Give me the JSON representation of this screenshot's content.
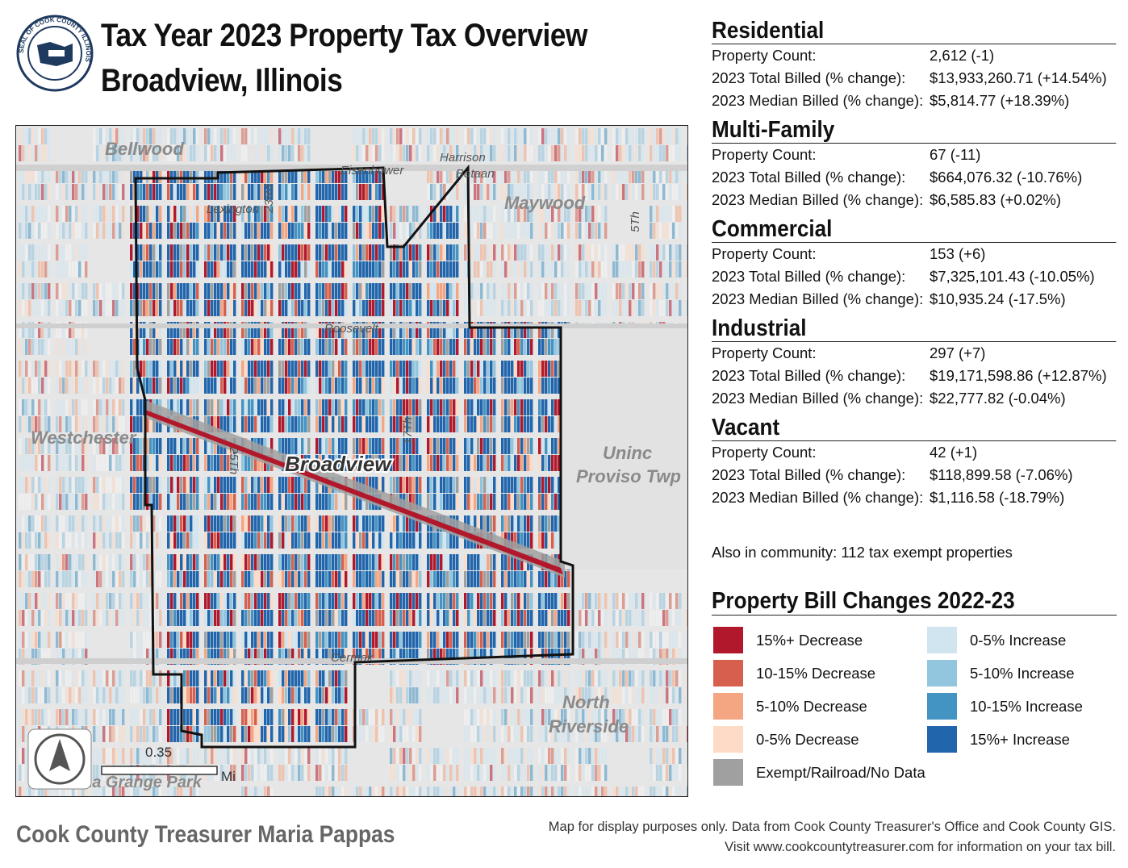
{
  "header": {
    "seal_text": "SEAL OF COOK COUNTY ILLINOIS",
    "title_line1": "Tax Year 2023 Property Tax Overview",
    "title_line2": "Broadview, Illinois"
  },
  "map": {
    "places": [
      "Bellwood",
      "Maywood",
      "Westchester",
      "Broadview",
      "Unincorporated",
      "North Riverside",
      "La Grange Park"
    ],
    "place_labels": {
      "bellwood": "Bellwood",
      "maywood": "Maywood",
      "westchester": "Westchester",
      "broadview": "Broadview",
      "uninc_1": "Uninc",
      "uninc_2": "Proviso Twp",
      "north_riverside_1": "North",
      "north_riverside_2": "Riverside",
      "la_grange_park": "La Grange Park"
    },
    "roads": {
      "eisenhower": "Eisenhower",
      "harrison": "Harrison",
      "bataan": "Bataan",
      "lexington": "Lexington",
      "rd23": "23Rd",
      "th17": "17Th",
      "th25": "25Th",
      "th5": "5Th",
      "roosevelt": "Roosevelt",
      "cermak": "Cermak"
    },
    "scale_value": "0.35",
    "scale_unit": "Mi"
  },
  "sections": [
    {
      "name": "Residential",
      "count_label": "Property Count:",
      "count": "2,612 (-1)",
      "total_label": "2023 Total Billed (% change):",
      "total": "$13,933,260.71 (+14.54%)",
      "median_label": "2023 Median Billed (% change):",
      "median": "$5,814.77 (+18.39%)"
    },
    {
      "name": "Multi-Family",
      "count_label": "Property Count:",
      "count": "67 (-11)",
      "total_label": "2023 Total Billed (% change):",
      "total": "$664,076.32 (-10.76%)",
      "median_label": "2023 Median Billed (% change):",
      "median": "$6,585.83 (+0.02%)"
    },
    {
      "name": "Commercial",
      "count_label": "Property Count:",
      "count": "153 (+6)",
      "total_label": "2023 Total Billed (% change):",
      "total": "$7,325,101.43 (-10.05%)",
      "median_label": "2023 Median Billed (% change):",
      "median": "$10,935.24 (-17.5%)"
    },
    {
      "name": "Industrial",
      "count_label": "Property Count:",
      "count": "297 (+7)",
      "total_label": "2023 Total Billed (% change):",
      "total": "$19,171,598.86 (+12.87%)",
      "median_label": "2023 Median Billed (% change):",
      "median": "$22,777.82 (-0.04%)"
    },
    {
      "name": "Vacant",
      "count_label": "Property Count:",
      "count": "42 (+1)",
      "total_label": "2023 Total Billed (% change):",
      "total": "$118,899.58 (-7.06%)",
      "median_label": "2023 Median Billed (% change):",
      "median": "$1,116.58 (-18.79%)"
    }
  ],
  "exempt_note": "Also in community: 112 tax exempt properties",
  "legend": {
    "title": "Property Bill Changes 2022-23",
    "items": [
      {
        "label": "15%+ Decrease",
        "color": "#b2182b"
      },
      {
        "label": "10-15% Decrease",
        "color": "#d6604d"
      },
      {
        "label": "5-10% Decrease",
        "color": "#f4a582"
      },
      {
        "label": "0-5% Decrease",
        "color": "#fddbc7"
      },
      {
        "label": "Exempt/Railroad/No Data",
        "color": "#a0a0a0"
      },
      {
        "label": "0-5% Increase",
        "color": "#d1e5f0"
      },
      {
        "label": "5-10% Increase",
        "color": "#92c5de"
      },
      {
        "label": "10-15% Increase",
        "color": "#4393c3"
      },
      {
        "label": "15%+ Increase",
        "color": "#2166ac"
      }
    ]
  },
  "footer": {
    "treasurer": "Cook County Treasurer Maria Pappas",
    "disclaimer_line1": "Map for display purposes only. Data from Cook County Treasurer's Office and Cook County GIS.",
    "disclaimer_line2": "Visit www.cookcountytreasurer.com for information on your tax bill."
  }
}
